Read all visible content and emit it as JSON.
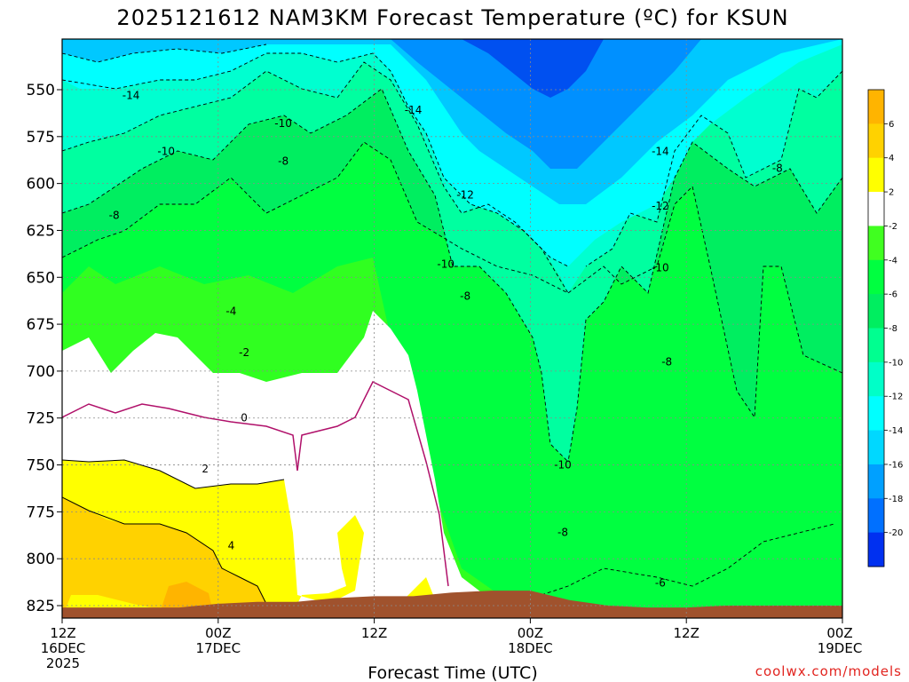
{
  "chart_data": {
    "type": "filled-contour",
    "title": "2025121612 NAM3KM Forecast Temperature (ºC) for KSUN",
    "xlabel": "Forecast Time (UTC)",
    "ylabel": "",
    "x_range_hours": [
      0,
      60
    ],
    "ylim": [
      835,
      530
    ],
    "y_ticks": [
      550,
      575,
      600,
      625,
      650,
      675,
      700,
      725,
      750,
      775,
      800,
      825
    ],
    "x_ticks": [
      {
        "hour": 0,
        "lines": [
          "12Z",
          "16DEC",
          "2025"
        ]
      },
      {
        "hour": 12,
        "lines": [
          "00Z",
          "17DEC"
        ]
      },
      {
        "hour": 24,
        "lines": [
          "12Z"
        ]
      },
      {
        "hour": 36,
        "lines": [
          "00Z",
          "18DEC"
        ]
      },
      {
        "hour": 48,
        "lines": [
          "12Z"
        ]
      },
      {
        "hour": 60,
        "lines": [
          "00Z",
          "19DEC"
        ]
      }
    ],
    "grid": true,
    "legend": "right (vertical colorbar)",
    "colorbar": {
      "levels": [
        6,
        4,
        2,
        -2,
        -4,
        -6,
        -8,
        -10,
        -12,
        -14,
        -16,
        -18,
        -20
      ],
      "labels": [
        "6",
        "4",
        "2",
        "-2",
        "-4",
        "-6",
        "-8",
        "-10",
        "-12",
        "-14",
        "-16",
        "-18",
        "-20"
      ],
      "colors": [
        "#ffb400",
        "#ffd200",
        "#ffff00",
        "#ffffff",
        "#40ff20",
        "#00ff40",
        "#00ee60",
        "#00ff90",
        "#00ffc8",
        "#00ffff",
        "#00d8ff",
        "#00a0ff",
        "#0070ff",
        "#0030f0"
      ]
    },
    "surface_pressure_hpa": [
      826,
      826,
      826,
      826,
      824,
      823,
      823,
      821,
      820,
      820,
      818,
      817,
      817,
      822,
      825,
      826,
      826,
      825,
      825,
      825,
      825
    ],
    "contour_labels": [
      {
        "text": "-14",
        "hour": 5.3,
        "hpa": 553
      },
      {
        "text": "-10",
        "hour": 17.0,
        "hpa": 568
      },
      {
        "text": "-10",
        "hour": 8.0,
        "hpa": 583
      },
      {
        "text": "-8",
        "hour": 17.0,
        "hpa": 588
      },
      {
        "text": "-8",
        "hour": 4.0,
        "hpa": 617
      },
      {
        "text": "-14",
        "hour": 27.0,
        "hpa": 561
      },
      {
        "text": "-12",
        "hour": 31.0,
        "hpa": 606
      },
      {
        "text": "-10",
        "hour": 29.5,
        "hpa": 643
      },
      {
        "text": "-8",
        "hour": 31.0,
        "hpa": 660
      },
      {
        "text": "-4",
        "hour": 13.0,
        "hpa": 668
      },
      {
        "text": "-2",
        "hour": 14.0,
        "hpa": 690
      },
      {
        "text": "0",
        "hour": 14.0,
        "hpa": 725
      },
      {
        "text": "2",
        "hour": 11.0,
        "hpa": 752
      },
      {
        "text": "4",
        "hour": 13.0,
        "hpa": 793
      },
      {
        "text": "-14",
        "hour": 46.0,
        "hpa": 583
      },
      {
        "text": "-12",
        "hour": 46.0,
        "hpa": 612
      },
      {
        "text": "-10",
        "hour": 46.0,
        "hpa": 645
      },
      {
        "text": "-8",
        "hour": 46.5,
        "hpa": 695
      },
      {
        "text": "-8",
        "hour": 55.0,
        "hpa": 592
      },
      {
        "text": "-10",
        "hour": 38.5,
        "hpa": 750
      },
      {
        "text": "-8",
        "hour": 38.5,
        "hpa": 786
      },
      {
        "text": "-6",
        "hour": 46.0,
        "hpa": 813
      }
    ],
    "regions": [
      {
        "label": "-20",
        "desc": "coldest core aloft near 18DEC 00Z-03Z",
        "color": "#0030f0"
      },
      {
        "label": "6",
        "desc": "warmest near surface 16DEC-17DEC",
        "color": "#ffb400"
      }
    ]
  },
  "credit": "coolwx.com/models"
}
